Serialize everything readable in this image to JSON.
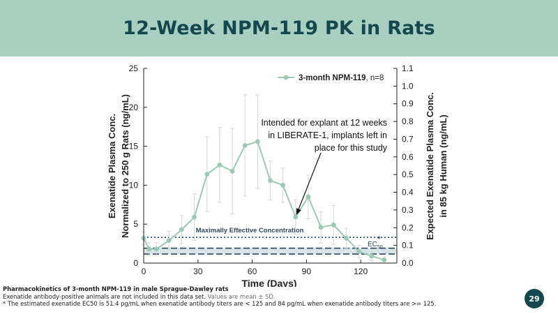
{
  "header": {
    "title": "12-Week NPM-119 PK in Rats"
  },
  "chart_data": {
    "type": "line",
    "xlabel": "Time (Days)",
    "ylabel_line1": "Exenatide Plasma Conc.",
    "ylabel_line2": "Normalized to 250 g Rats (ng/mL)",
    "y2label_line1": "Expected Exenatide Plasma Conc.",
    "y2label_line2": "in 85 kg Human (ng/mL)",
    "xlim": [
      0,
      140
    ],
    "ylim": [
      0,
      25
    ],
    "y2lim": [
      0,
      1.1
    ],
    "x_ticks": [
      0,
      30,
      60,
      90,
      120
    ],
    "y_ticks": [
      0,
      5,
      10,
      15,
      20,
      25
    ],
    "y2_ticks": [
      "0.0",
      "0.1",
      "0.2",
      "0.3",
      "0.4",
      "0.5",
      "0.6",
      "0.7",
      "0.8",
      "0.9",
      "1.0",
      "1.1"
    ],
    "grid": false,
    "series": [
      {
        "name": "3-month NPM-119",
        "color": "#9cc9b4",
        "x": [
          0,
          3,
          7,
          14,
          21,
          28,
          35,
          42,
          49,
          56,
          63,
          70,
          77,
          84,
          91,
          98,
          105,
          112,
          119,
          126,
          133
        ],
        "y": [
          3.2,
          1.8,
          1.8,
          2.9,
          4.3,
          5.9,
          11.4,
          12.6,
          11.8,
          15.1,
          15.6,
          10.6,
          10.0,
          5.9,
          8.5,
          4.6,
          4.9,
          3.2,
          1.5,
          0.9,
          0.4
        ],
        "err": [
          0.8,
          0.8,
          0.8,
          1.2,
          1.8,
          3.0,
          4.8,
          4.8,
          5.5,
          6.5,
          6.0,
          2.5,
          2.2,
          2.2,
          2.8,
          2.0,
          2.5,
          1.3,
          0.8,
          0.6,
          0.4
        ]
      }
    ],
    "legend": {
      "position": "top-right",
      "label": "3-month NPM-119",
      "suffix": ", n=8"
    },
    "reference_lines": {
      "mec_label": "Maximally Effective Concentration",
      "mec_value": 3.3,
      "ec50_label": "EC",
      "ec50_sub": "50",
      "ec50_star": "*",
      "ec50_values": [
        1.16,
        1.91
      ]
    },
    "annotation": {
      "lines": [
        "Intended for explant at 12 weeks",
        "in LIBERATE-1, implants left in",
        "place for this study"
      ],
      "point_x": 84,
      "point_y": 5.9
    }
  },
  "footnotes": {
    "title": "Pharmacokinetics of 3-month NPM-119 in male Sprague-Dawley rats",
    "line2_main": "Exenatide antibody-positive animals are not included in this data set.",
    "line2_muted": "Values are mean ± SD.",
    "line3": "* The estimated exenatide EC50 is 51.4 pg/mL when exenatide antibody titers are < 125 and 84 pg/mL when exenatide antibody titers are >= 125."
  },
  "page_number": "29"
}
